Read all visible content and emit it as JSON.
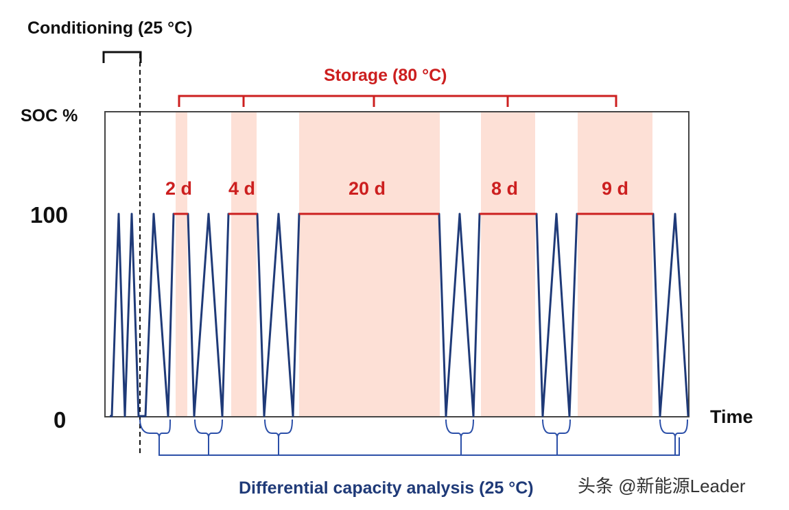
{
  "labels": {
    "conditioning": "Conditioning (25 °C)",
    "storage": "Storage (80 °C)",
    "y_axis": "SOC %",
    "x_axis": "Time",
    "dca": "Differential capacity analysis  (25 °C)",
    "watermark": "头条 @新能源Leader"
  },
  "chart_data": {
    "type": "line",
    "title": "",
    "xlabel": "Time",
    "ylabel": "SOC %",
    "yticks": [
      0,
      100
    ],
    "ylim": [
      0,
      100
    ],
    "storage_periods": [
      {
        "label": "2 d",
        "days": 2
      },
      {
        "label": "4 d",
        "days": 4
      },
      {
        "label": "20 d",
        "days": 20
      },
      {
        "label": "8 d",
        "days": 8
      },
      {
        "label": "9 d",
        "days": 9
      }
    ],
    "phases": {
      "conditioning": "Conditioning (25 °C)",
      "storage": "Storage (80 °C)",
      "analysis": "Differential capacity analysis  (25 °C)"
    }
  },
  "colors": {
    "red": "#cc1f1f",
    "navy": "#1f3a78",
    "shade": "#fde0d6",
    "blue_bracket": "#2b4fa8",
    "axis": "#333333"
  }
}
